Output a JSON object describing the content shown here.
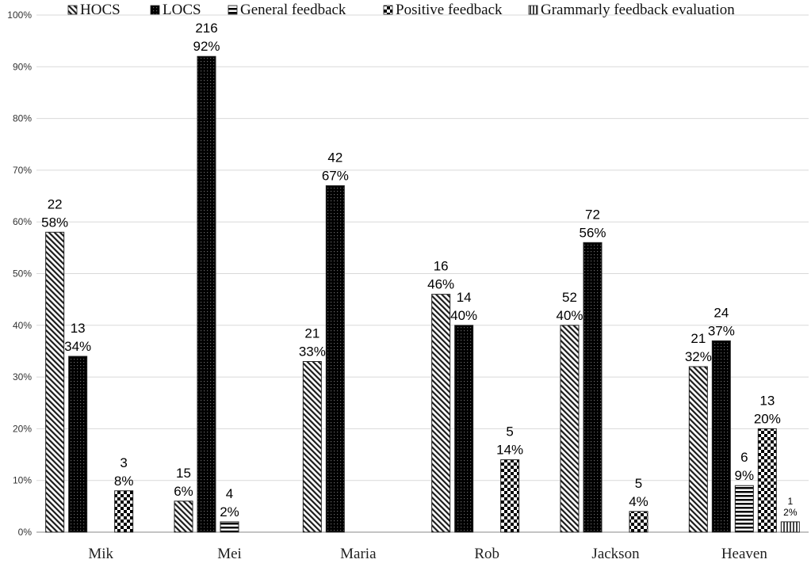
{
  "chart_data": {
    "type": "bar",
    "title": "",
    "xlabel": "",
    "ylabel": "",
    "ylim": [
      0,
      100
    ],
    "yticks": [
      "0%",
      "10%",
      "20%",
      "30%",
      "40%",
      "50%",
      "60%",
      "70%",
      "80%",
      "90%",
      "100%"
    ],
    "grid": true,
    "legend_position": "top",
    "categories": [
      "Mik",
      "Mei",
      "Maria",
      "Rob",
      "Jackson",
      "Heaven"
    ],
    "series": [
      {
        "name": "HOCS",
        "pattern": "diagonal",
        "values": [
          58,
          6,
          33,
          46,
          40,
          32
        ],
        "labels": [
          "22\n58%",
          "15\n6%",
          "21\n33%",
          "16\n46%",
          "52\n40%",
          "21\n32%"
        ]
      },
      {
        "name": "LOCS",
        "pattern": "dense-dots",
        "values": [
          34,
          92,
          67,
          40,
          56,
          37
        ],
        "labels": [
          "13\n34%",
          "216\n92%",
          "42\n67%",
          "14\n40%",
          "72\n56%",
          "24\n37%"
        ]
      },
      {
        "name": "General feedback",
        "pattern": "horizontal-lines",
        "values": [
          0,
          2,
          0,
          0,
          0,
          9
        ],
        "labels": [
          "",
          "4\n2%",
          "",
          "",
          "",
          "6\n9%"
        ]
      },
      {
        "name": "Positive feedback",
        "pattern": "checkerboard",
        "values": [
          8,
          0,
          0,
          14,
          4,
          20
        ],
        "labels": [
          "3\n8%",
          "",
          "",
          "5\n14%",
          "5\n4%",
          "13\n20%"
        ]
      },
      {
        "name": "Grammarly feedback evaluation",
        "pattern": "vertical-lines",
        "values": [
          0,
          0,
          0,
          0,
          0,
          2
        ],
        "labels": [
          "",
          "",
          "",
          "",
          "",
          "1\n2%"
        ]
      }
    ]
  }
}
